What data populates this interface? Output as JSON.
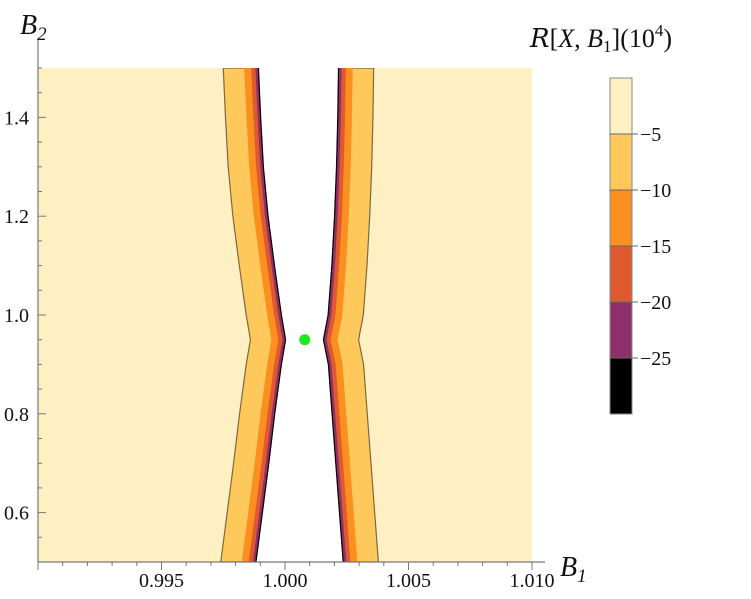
{
  "chart_data": {
    "type": "contour",
    "xlabel": "B",
    "xlabel_sub": "1",
    "ylabel": "B",
    "ylabel_sub": "2",
    "xlim": [
      0.99,
      1.01
    ],
    "ylim": [
      0.5,
      1.5
    ],
    "x_ticks": [
      0.995,
      1.0,
      1.005,
      1.01
    ],
    "x_tick_labels": [
      "0.995",
      "1.000",
      "1.005",
      "1.010"
    ],
    "y_ticks": [
      0.6,
      0.8,
      1.0,
      1.2,
      1.4
    ],
    "y_tick_labels": [
      "0.6",
      "0.8",
      "1.0",
      "1.2",
      "1.4"
    ],
    "colorbar": {
      "title_script": "R",
      "title_open": "[",
      "title_x": "X",
      "title_sep": ", ",
      "title_b": "B",
      "title_b_sub": "1",
      "title_close": "](10",
      "title_exp": "4",
      "title_end": ")",
      "levels": [
        -25,
        -20,
        -15,
        -10,
        -5
      ],
      "level_labels": [
        "−25",
        "−20",
        "−15",
        "−10",
        "−5"
      ],
      "colors": [
        "#000000",
        "#8e2f6a",
        "#e05a30",
        "#fb8f1f",
        "#fec85a",
        "#fff0c3"
      ]
    },
    "boundary_left": {
      "B2": [
        0.5,
        0.6,
        0.7,
        0.8,
        0.9,
        0.95,
        1.0,
        1.1,
        1.2,
        1.3,
        1.4,
        1.5
      ],
      "B1": [
        0.99885,
        0.99911,
        0.99937,
        0.99961,
        0.99988,
        1.00005,
        0.99988,
        0.9996,
        0.99934,
        0.99915,
        0.99904,
        0.99895
      ]
    },
    "boundary_right": {
      "B2": [
        0.5,
        0.6,
        0.7,
        0.8,
        0.9,
        0.95,
        1.0,
        1.1,
        1.2,
        1.3,
        1.4,
        1.5
      ],
      "B1": [
        1.00233,
        1.00218,
        1.00203,
        1.00188,
        1.00173,
        1.00153,
        1.00172,
        1.00187,
        1.00198,
        1.00206,
        1.00211,
        1.00214
      ]
    },
    "band_widths_left": [
      5e-05,
      0.0001,
      0.00017,
      0.00028,
      0.00085
    ],
    "band_widths_right": [
      5e-05,
      0.0001,
      0.00017,
      0.00028,
      0.00085
    ],
    "point": {
      "B1": 1.0008,
      "B2": 0.95,
      "color": "#22e622"
    }
  }
}
